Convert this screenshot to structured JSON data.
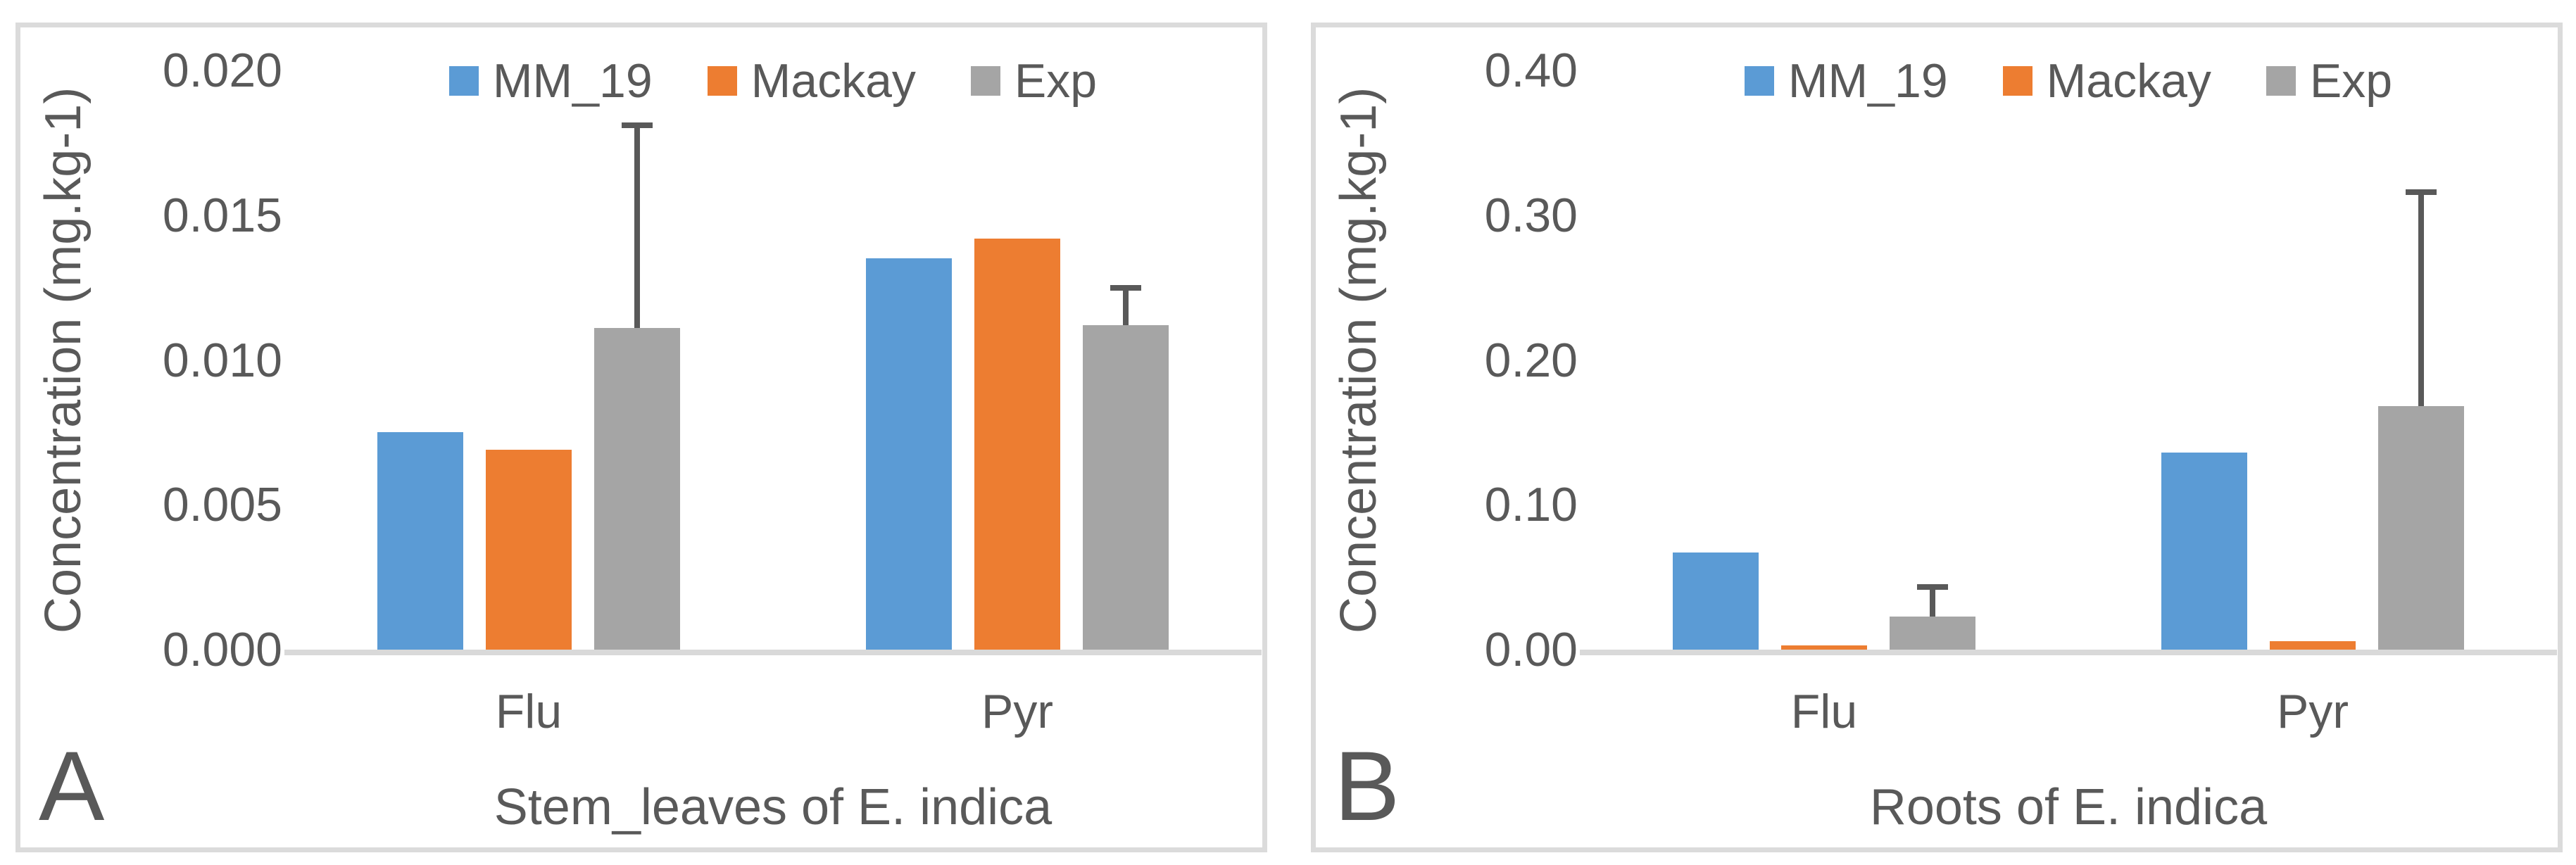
{
  "figure_title": "",
  "colors": {
    "blue": "#5B9BD5",
    "orange": "#ED7D31",
    "gray": "#A5A5A5",
    "error_bar": "#595959",
    "axis_line": "#D9D9D9",
    "text": "#595959",
    "panel_border": "#DBDBDB"
  },
  "chart_data": [
    {
      "type": "bar",
      "panel_label": "A",
      "title": "",
      "xlabel": "Stem_leaves of E. indica",
      "ylabel": "Concentration (mg.kg-1)",
      "categories": [
        "Flu",
        "Pyr"
      ],
      "series": [
        {
          "name": "MM_19",
          "color_key": "blue",
          "values": [
            0.0075,
            0.0135
          ]
        },
        {
          "name": "Mackay",
          "color_key": "orange",
          "values": [
            0.0069,
            0.0142
          ]
        },
        {
          "name": "Exp",
          "color_key": "gray",
          "values": [
            0.0111,
            0.0112
          ],
          "error_up": [
            0.0071,
            0.0014
          ]
        }
      ],
      "ylim": [
        0,
        0.02
      ],
      "yticks": [
        0,
        0.005,
        0.01,
        0.015,
        0.02
      ],
      "ytick_labels": [
        "0.000",
        "0.005",
        "0.010",
        "0.015",
        "0.020"
      ],
      "grid": false,
      "legend_position": "top"
    },
    {
      "type": "bar",
      "panel_label": "B",
      "title": "",
      "xlabel": "Roots of E. indica",
      "ylabel": "Concentration (mg.kg-1)",
      "categories": [
        "Flu",
        "Pyr"
      ],
      "series": [
        {
          "name": "MM_19",
          "color_key": "blue",
          "values": [
            0.067,
            0.136
          ]
        },
        {
          "name": "Mackay",
          "color_key": "orange",
          "values": [
            0.003,
            0.006
          ]
        },
        {
          "name": "Exp",
          "color_key": "gray",
          "values": [
            0.023,
            0.168
          ],
          "error_up": [
            0.022,
            0.15
          ]
        }
      ],
      "ylim": [
        0,
        0.4
      ],
      "yticks": [
        0,
        0.1,
        0.2,
        0.3,
        0.4
      ],
      "ytick_labels": [
        "0.00",
        "0.10",
        "0.20",
        "0.30",
        "0.40"
      ],
      "grid": false,
      "legend_position": "top"
    }
  ]
}
